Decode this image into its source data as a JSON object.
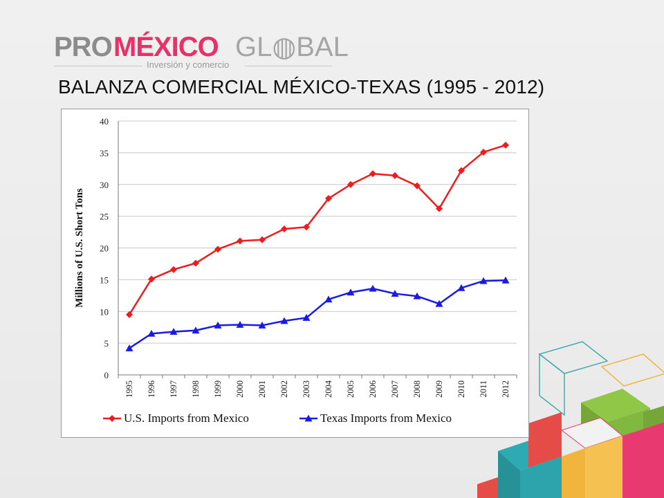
{
  "logo": {
    "pro": "PRO",
    "mexico": "MÉXICO",
    "global": "GL◍BAL",
    "tagline": "Inversión y comercio"
  },
  "slide_title": "BALANZA COMERCIAL MÉXICO-TEXAS (1995 - 2012)",
  "colors": {
    "us_series": "#ee1c1c",
    "tx_series": "#1a1ae6",
    "grid": "#c8c8c8"
  },
  "chart_data": {
    "type": "line",
    "title": "",
    "xlabel": "",
    "ylabel": "Millions of U.S. Short Tons",
    "ylim": [
      0,
      40
    ],
    "yticks": [
      0,
      5,
      10,
      15,
      20,
      25,
      30,
      35,
      40
    ],
    "grid": true,
    "legend_position": "bottom",
    "categories": [
      "1995",
      "1996",
      "1997",
      "1998",
      "1999",
      "2000",
      "2001",
      "2002",
      "2003",
      "2004",
      "2005",
      "2006",
      "2007",
      "2008",
      "2009",
      "2010",
      "2011",
      "2012"
    ],
    "series": [
      {
        "name": "U.S. Imports from Mexico",
        "marker": "diamond",
        "color": "#ee1c1c",
        "values": [
          9.5,
          15.1,
          16.6,
          17.6,
          19.8,
          21.1,
          21.3,
          23.0,
          23.3,
          27.8,
          30.0,
          31.7,
          31.4,
          29.8,
          26.2,
          32.2,
          35.1,
          36.2
        ]
      },
      {
        "name": "Texas Imports from Mexico",
        "marker": "triangle",
        "color": "#1a1ae6",
        "values": [
          4.2,
          6.5,
          6.8,
          7.0,
          7.8,
          7.9,
          7.8,
          8.5,
          9.0,
          11.9,
          13.0,
          13.6,
          12.8,
          12.4,
          11.2,
          13.7,
          14.8,
          14.9
        ]
      }
    ]
  }
}
